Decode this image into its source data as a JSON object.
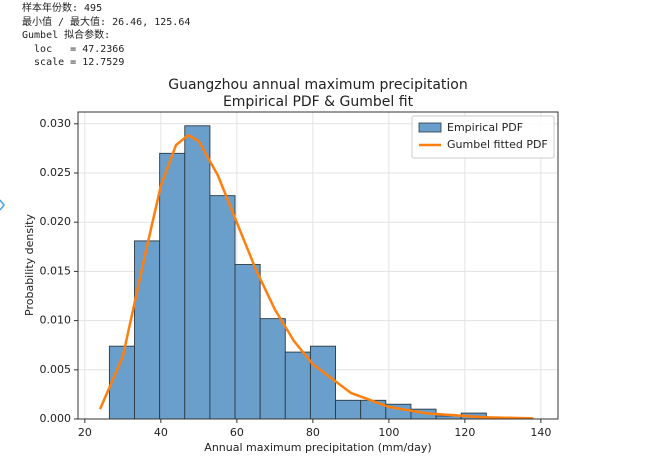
{
  "console_output": [
    "样本年份数: 495",
    "最小值 / 最大值: 26.46, 125.64",
    "Gumbel 拟合参数:",
    "  loc   = 47.2366",
    "  scale = 12.7529"
  ],
  "chart_data": {
    "type": "histogram",
    "title": "Guangzhou annual maximum precipitation",
    "subtitle": "Empirical PDF & Gumbel fit",
    "xlabel": "Annual maximum precipitation (mm/day)",
    "ylabel": "Probability density",
    "name": "Empirical PDF",
    "color": "#6b9fcb",
    "bins": [
      26.46,
      33.072,
      39.684,
      46.296,
      52.908,
      59.52,
      66.132,
      72.744,
      79.356,
      85.968,
      92.58,
      99.192,
      105.804,
      112.416,
      119.028,
      125.64
    ],
    "values": [
      0.0074,
      0.0181,
      0.027,
      0.0298,
      0.0227,
      0.0157,
      0.0102,
      0.0068,
      0.0074,
      0.0019,
      0.0019,
      0.0015,
      0.001,
      0.0003,
      0.0006
    ],
    "series": [
      {
        "name": "Gumbel fitted PDF",
        "type": "line",
        "color": "#ff7f0e",
        "x": [
          24,
          30,
          36,
          40,
          44,
          47.24,
          50,
          55,
          60,
          65,
          70,
          75,
          80,
          90,
          100,
          110,
          125,
          138
        ],
        "values": [
          0.001,
          0.00635,
          0.01694,
          0.0237,
          0.02785,
          0.02885,
          0.02822,
          0.02476,
          0.01996,
          0.01519,
          0.01113,
          0.00794,
          0.00556,
          0.00265,
          0.00123,
          0.00057,
          0.00018,
          6e-05
        ]
      }
    ],
    "xlim": [
      18.2,
      144.5
    ],
    "ylim": [
      0,
      0.0312
    ],
    "xticks": [
      20,
      40,
      60,
      80,
      100,
      120,
      140
    ],
    "yticks": [
      {
        "value": 0,
        "label": "0.000"
      },
      {
        "value": 0.005,
        "label": "0.005"
      },
      {
        "value": 0.01,
        "label": "0.010"
      },
      {
        "value": 0.015,
        "label": "0.015"
      },
      {
        "value": 0.02,
        "label": "0.020"
      },
      {
        "value": 0.025,
        "label": "0.025"
      },
      {
        "value": 0.03,
        "label": "0.030"
      }
    ],
    "grid": true,
    "legend": "upper right"
  }
}
